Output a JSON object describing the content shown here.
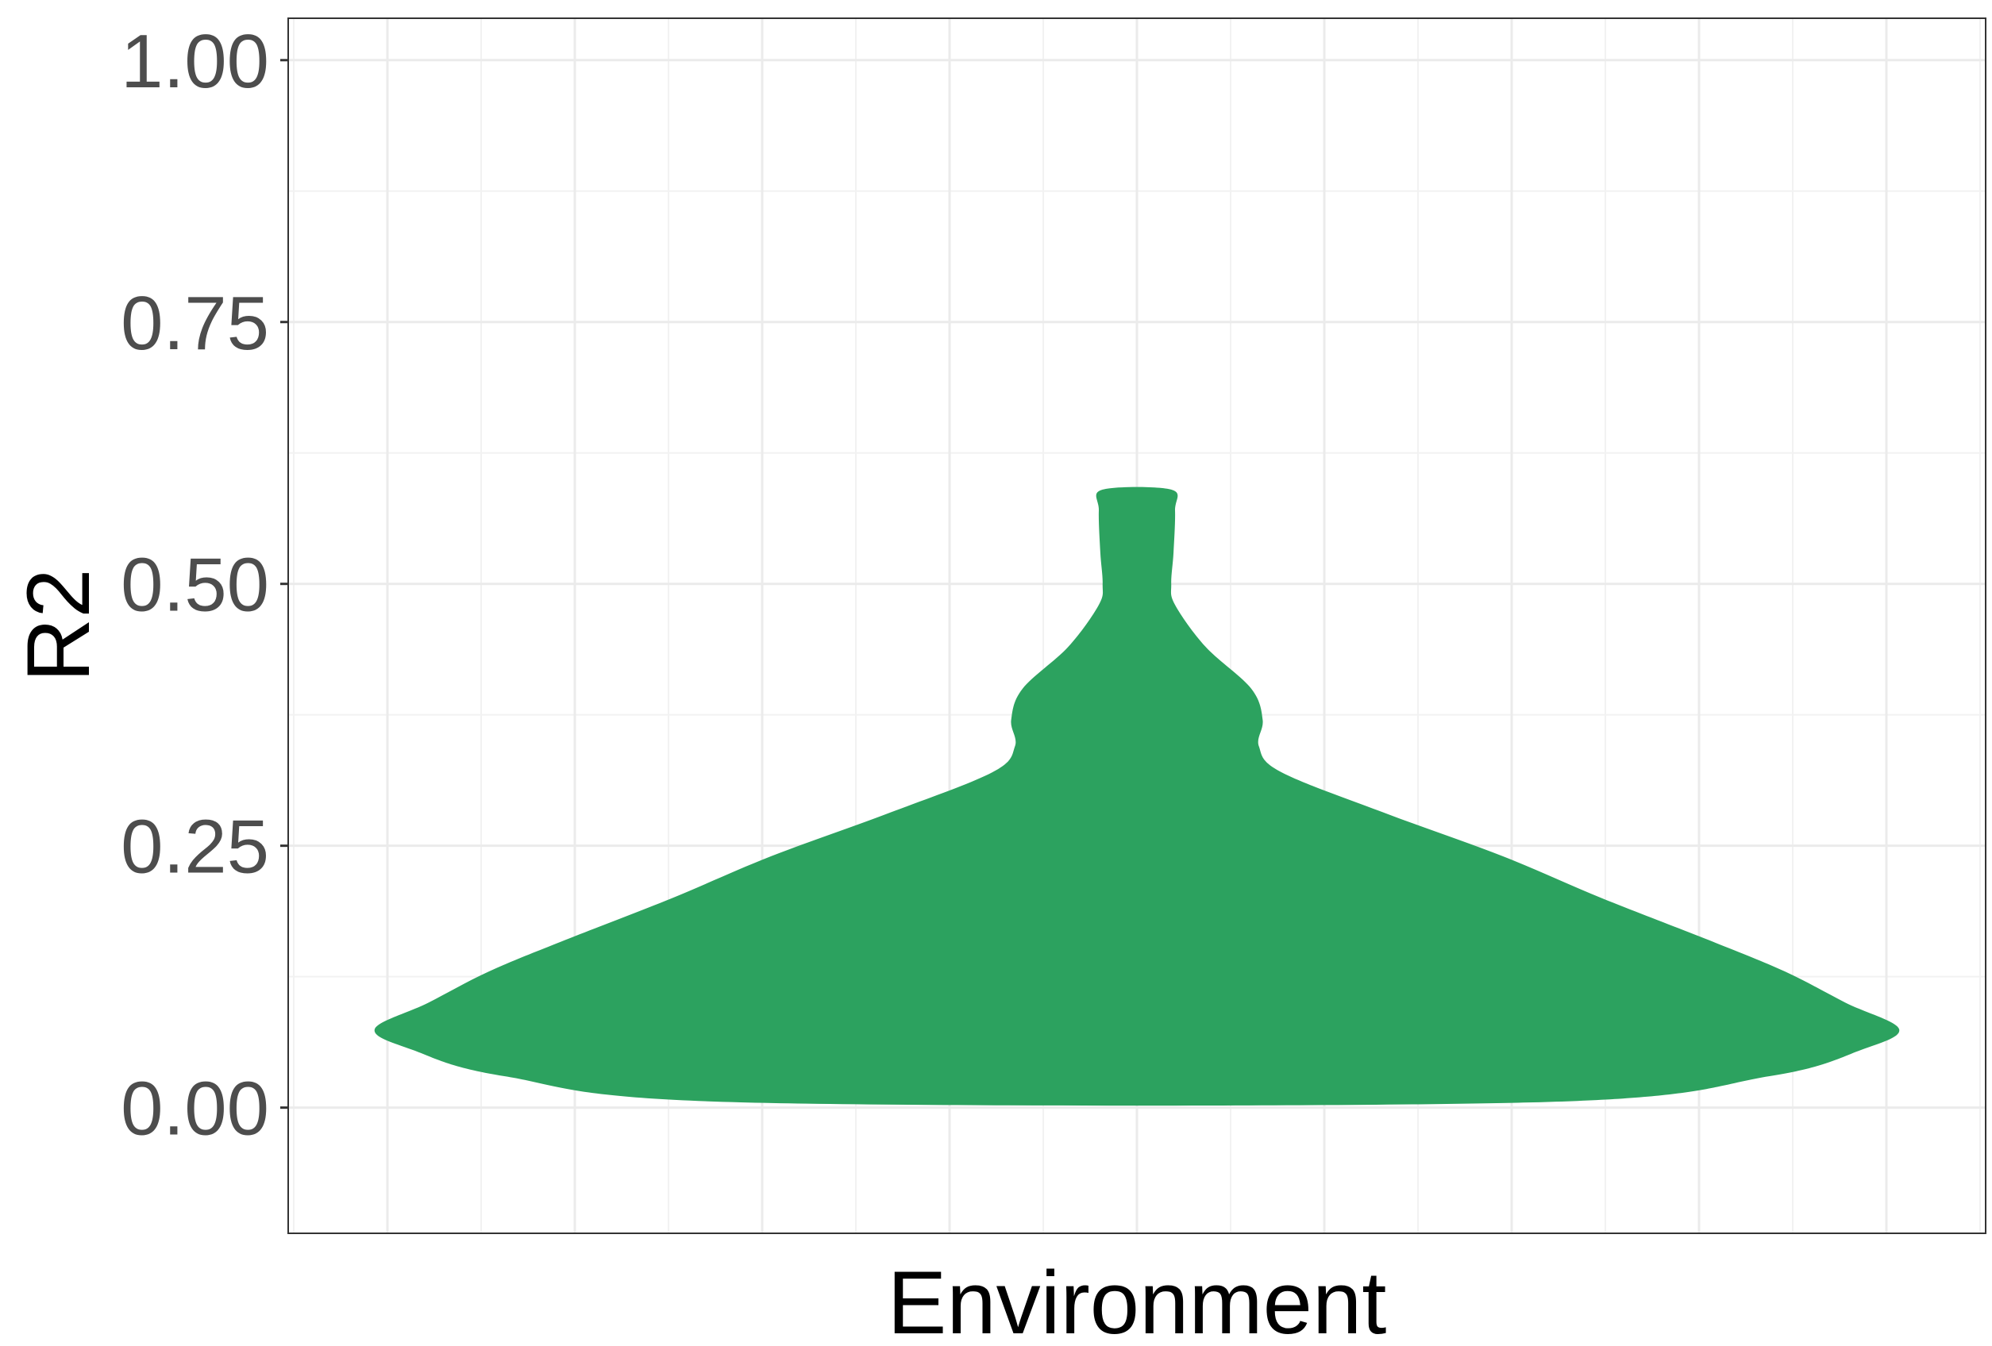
{
  "chart_data": {
    "type": "violin",
    "xlabel": "Environment",
    "ylabel": "R2",
    "ylim": [
      -0.12,
      1.04
    ],
    "yticks": [
      0.0,
      0.25,
      0.5,
      0.75,
      1.0
    ],
    "ytick_labels": [
      "0.00",
      "0.25",
      "0.50",
      "0.75",
      "1.00"
    ],
    "grid": true,
    "legend": "none",
    "fill_color": "#2ca25f",
    "series": [
      {
        "category": "",
        "range": [
          0.005,
          0.59
        ],
        "density_profile": [
          {
            "y": 0.005,
            "half_width": 0.52
          },
          {
            "y": 0.03,
            "half_width": 0.83
          },
          {
            "y": 0.055,
            "half_width": 0.95
          },
          {
            "y": 0.075,
            "half_width": 1.0
          },
          {
            "y": 0.1,
            "half_width": 0.93
          },
          {
            "y": 0.13,
            "half_width": 0.85
          },
          {
            "y": 0.16,
            "half_width": 0.75
          },
          {
            "y": 0.2,
            "half_width": 0.61
          },
          {
            "y": 0.24,
            "half_width": 0.48
          },
          {
            "y": 0.28,
            "half_width": 0.33
          },
          {
            "y": 0.32,
            "half_width": 0.19
          },
          {
            "y": 0.345,
            "half_width": 0.16
          },
          {
            "y": 0.37,
            "half_width": 0.165
          },
          {
            "y": 0.4,
            "half_width": 0.15
          },
          {
            "y": 0.44,
            "half_width": 0.09
          },
          {
            "y": 0.48,
            "half_width": 0.05
          },
          {
            "y": 0.5,
            "half_width": 0.045
          },
          {
            "y": 0.53,
            "half_width": 0.048
          },
          {
            "y": 0.57,
            "half_width": 0.05
          },
          {
            "y": 0.59,
            "half_width": 0.045
          }
        ]
      }
    ]
  }
}
